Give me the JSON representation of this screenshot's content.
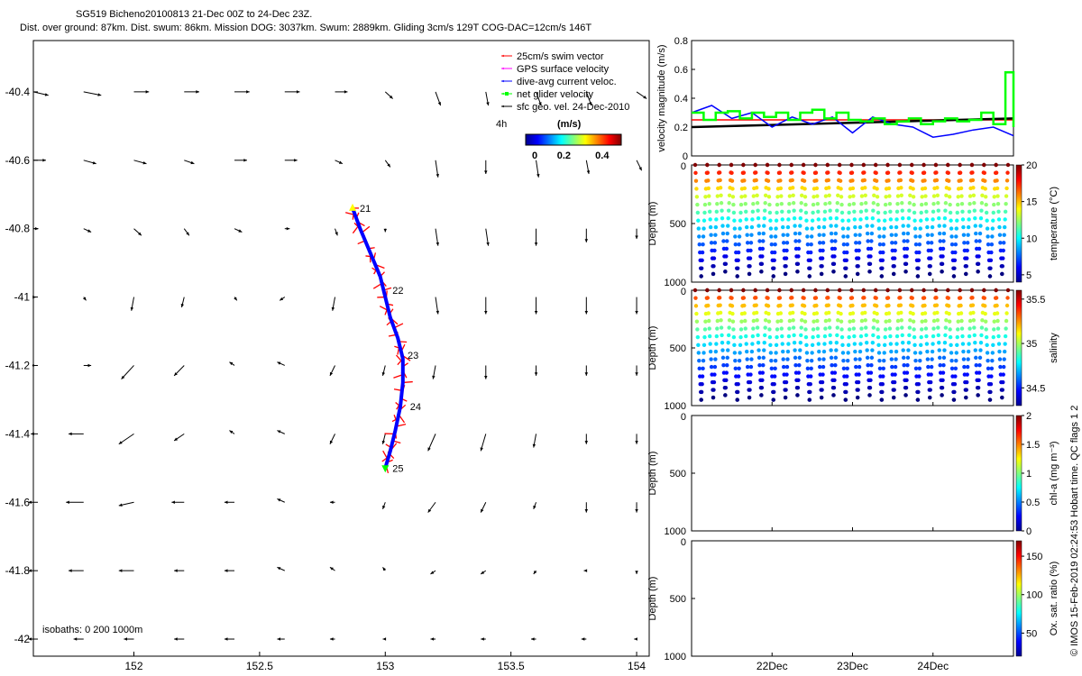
{
  "header": {
    "line1": "SG519 Bicheno20100813 21-Dec 00Z to 24-Dec 23Z.",
    "line2": "Dist. over ground: 87km. Dist. swum: 86km. Mission DOG: 3037km. Swum: 2889km. Gliding 3cm/s 129T COG-DAC=12cm/s 146T"
  },
  "credit": "© IMOS 15-Feb-2019 02:24:53 Hobart time. QC flags 1  2",
  "colors": {
    "swim": "#ff0000",
    "gps": "#ff00ff",
    "dac": "#0000ff",
    "net": "#00ff00",
    "sfc": "#000000",
    "track": "#0000ff"
  },
  "chart_data": [
    {
      "type": "scatter",
      "name": "map",
      "xlim": [
        151.6,
        154.05
      ],
      "ylim": [
        -42.05,
        -40.25
      ],
      "xticks": [
        152,
        152.5,
        153,
        153.5,
        154
      ],
      "xtick_labels": [
        "152",
        "152.5",
        "153",
        "153.5",
        "154"
      ],
      "yticks": [
        -40.4,
        -40.6,
        -40.8,
        -41,
        -41.2,
        -41.4,
        -41.6,
        -41.8,
        -42
      ],
      "ytick_labels": [
        "-40.4",
        "-40.6",
        "-40.8",
        "-41",
        "-41.2",
        "-41.4",
        "-41.6",
        "-41.8",
        "-42"
      ],
      "legend": {
        "placement": "top-right",
        "items": [
          "25cm/s swim vector",
          "GPS surface velocity",
          "dive-avg current veloc.",
          "net glider velocity",
          "sfc geo. vel. 24-Dec-2010"
        ],
        "extra_label": "4h",
        "colorbar_title": "(m/s)",
        "colorbar_ticks": [
          "0",
          "0.2",
          "0.4"
        ]
      },
      "isobaths_label": "isobaths: 0   200  1000m",
      "grid_x": [
        151.6,
        151.8,
        152.0,
        152.2,
        152.4,
        152.6,
        152.8,
        153.0,
        153.2,
        153.4,
        153.6,
        153.8,
        154.0
      ],
      "grid_y": [
        -40.4,
        -40.6,
        -40.8,
        -41.0,
        -41.2,
        -41.4,
        -41.6,
        -41.8,
        -42.0
      ],
      "sfc_vectors": [
        [
          [
            0.06,
            -0.01
          ],
          [
            0.07,
            -0.01
          ],
          [
            0.06,
            0
          ],
          [
            0.06,
            0
          ],
          [
            0.06,
            0
          ],
          [
            0.06,
            0
          ],
          [
            0.05,
            0
          ],
          [
            0.03,
            -0.02
          ],
          [
            0.02,
            -0.04
          ],
          [
            0.01,
            -0.04
          ],
          [
            0.02,
            -0.04
          ],
          [
            0.02,
            -0.04
          ],
          [
            0.04,
            -0.02
          ]
        ],
        [
          [
            0.05,
            0
          ],
          [
            0.05,
            -0.01
          ],
          [
            0.05,
            -0.01
          ],
          [
            0.04,
            -0.01
          ],
          [
            0.05,
            0
          ],
          [
            0.05,
            0
          ],
          [
            0.03,
            -0.01
          ],
          [
            0.02,
            -0.02
          ],
          [
            0.01,
            -0.05
          ],
          [
            0,
            -0.04
          ],
          [
            0.01,
            -0.05
          ],
          [
            0.01,
            -0.04
          ],
          [
            0.02,
            -0.03
          ]
        ],
        [
          [
            0.02,
            0
          ],
          [
            0.03,
            -0.01
          ],
          [
            0.03,
            -0.02
          ],
          [
            0.02,
            -0.02
          ],
          [
            0.03,
            -0.01
          ],
          [
            0.02,
            0
          ],
          [
            0.01,
            -0.02
          ],
          [
            0,
            -0.01
          ],
          [
            0.01,
            -0.05
          ],
          [
            0.01,
            -0.05
          ],
          [
            0,
            -0.05
          ],
          [
            0,
            -0.04
          ],
          [
            0,
            -0.03
          ]
        ],
        [
          [
            0.01,
            0
          ],
          [
            0.01,
            -0.01
          ],
          [
            -0.01,
            -0.04
          ],
          [
            -0.01,
            -0.03
          ],
          [
            0.01,
            -0.01
          ],
          [
            -0.02,
            -0.01
          ],
          [
            -0.01,
            -0.04
          ],
          [
            0.01,
            -0.03
          ],
          [
            0.01,
            -0.05
          ],
          [
            0,
            -0.05
          ],
          [
            0,
            -0.05
          ],
          [
            0,
            -0.05
          ],
          [
            0,
            -0.05
          ]
        ],
        [
          [
            0,
            0
          ],
          [
            0.03,
            0
          ],
          [
            -0.05,
            -0.04
          ],
          [
            -0.04,
            -0.03
          ],
          [
            -0.02,
            0.01
          ],
          [
            -0.03,
            0.01
          ],
          [
            -0.02,
            -0.03
          ],
          [
            -0.01,
            -0.03
          ],
          [
            -0.01,
            -0.04
          ],
          [
            0,
            -0.04
          ],
          [
            0,
            -0.03
          ],
          [
            0,
            -0.03
          ],
          [
            0,
            -0.03
          ]
        ],
        [
          [
            -0.01,
            0
          ],
          [
            -0.06,
            0
          ],
          [
            -0.06,
            -0.03
          ],
          [
            -0.04,
            -0.02
          ],
          [
            -0.02,
            0.01
          ],
          [
            -0.03,
            0.01
          ],
          [
            -0.02,
            -0.03
          ],
          [
            -0.01,
            -0.03
          ],
          [
            -0.03,
            -0.05
          ],
          [
            -0.02,
            -0.05
          ],
          [
            -0.01,
            -0.04
          ],
          [
            0,
            -0.03
          ],
          [
            0,
            -0.03
          ]
        ],
        [
          [
            -0.02,
            0
          ],
          [
            -0.07,
            0
          ],
          [
            -0.06,
            -0.01
          ],
          [
            -0.05,
            0
          ],
          [
            -0.04,
            0
          ],
          [
            -0.03,
            0.01
          ],
          [
            -0.02,
            0
          ],
          [
            -0.01,
            -0.02
          ],
          [
            -0.03,
            -0.03
          ],
          [
            -0.02,
            -0.03
          ],
          [
            -0.01,
            -0.02
          ],
          [
            0,
            -0.03
          ],
          [
            0,
            -0.03
          ]
        ],
        [
          [
            -0.02,
            0
          ],
          [
            -0.06,
            0
          ],
          [
            -0.06,
            0
          ],
          [
            -0.04,
            0
          ],
          [
            -0.04,
            0
          ],
          [
            -0.03,
            0.01
          ],
          [
            -0.02,
            0.01
          ],
          [
            -0.01,
            0.01
          ],
          [
            -0.02,
            -0.01
          ],
          [
            -0.02,
            -0.01
          ],
          [
            -0.01,
            -0.01
          ],
          [
            -0.01,
            0
          ],
          [
            0,
            -0.01
          ]
        ],
        [
          [
            -0.02,
            0
          ],
          [
            -0.04,
            0
          ],
          [
            -0.04,
            0
          ],
          [
            -0.04,
            0
          ],
          [
            -0.04,
            0
          ],
          [
            -0.03,
            0
          ],
          [
            -0.02,
            0
          ],
          [
            -0.01,
            0
          ],
          [
            -0.02,
            0
          ],
          [
            -0.02,
            0
          ],
          [
            -0.02,
            0
          ],
          [
            -0.02,
            0
          ],
          [
            -0.01,
            0
          ]
        ]
      ],
      "track": [
        [
          152.87,
          -40.74
        ],
        [
          152.9,
          -40.8
        ],
        [
          152.94,
          -40.87
        ],
        [
          152.98,
          -40.94
        ],
        [
          153.0,
          -41.0
        ],
        [
          153.02,
          -41.06
        ],
        [
          153.05,
          -41.12
        ],
        [
          153.07,
          -41.18
        ],
        [
          153.07,
          -41.25
        ],
        [
          153.06,
          -41.32
        ],
        [
          153.04,
          -41.39
        ],
        [
          153.02,
          -41.45
        ],
        [
          153.0,
          -41.5
        ]
      ],
      "day_labels": [
        {
          "text": "21",
          "lon": 152.87,
          "lat": -40.74
        },
        {
          "text": "22",
          "lon": 153.0,
          "lat": -40.98
        },
        {
          "text": "23",
          "lon": 153.06,
          "lat": -41.17
        },
        {
          "text": "24",
          "lon": 153.07,
          "lat": -41.32
        },
        {
          "text": "25",
          "lon": 153.0,
          "lat": -41.5
        }
      ]
    },
    {
      "type": "line",
      "name": "velocity",
      "ylabel": "velocity magnitude (m/s)",
      "ylim": [
        0,
        0.8
      ],
      "yticks": [
        "0",
        "0.2",
        "0.4",
        "0.6",
        "0.8"
      ],
      "xlim": [
        0,
        4
      ],
      "series": [
        {
          "color": "#ff0000",
          "x": [
            0,
            4
          ],
          "y": [
            0.25,
            0.25
          ]
        },
        {
          "color": "#000000",
          "x": [
            0,
            4
          ],
          "y": [
            0.2,
            0.26
          ]
        },
        {
          "color": "#0000ff",
          "x": [
            0,
            0.25,
            0.5,
            0.75,
            1.0,
            1.25,
            1.5,
            1.75,
            2.0,
            2.25,
            2.5,
            2.75,
            3.0,
            3.25,
            3.5,
            3.75,
            4.0
          ],
          "y": [
            0.3,
            0.35,
            0.26,
            0.3,
            0.2,
            0.27,
            0.22,
            0.27,
            0.16,
            0.27,
            0.22,
            0.2,
            0.13,
            0.15,
            0.18,
            0.2,
            0.14
          ]
        },
        {
          "color": "#00ff00",
          "step": true,
          "x": [
            0,
            0.15,
            0.3,
            0.45,
            0.6,
            0.75,
            0.9,
            1.05,
            1.2,
            1.35,
            1.5,
            1.65,
            1.8,
            1.95,
            2.1,
            2.25,
            2.4,
            2.55,
            2.7,
            2.85,
            3.0,
            3.15,
            3.3,
            3.45,
            3.6,
            3.75,
            3.9,
            4.0
          ],
          "y": [
            0.3,
            0.25,
            0.3,
            0.31,
            0.26,
            0.3,
            0.27,
            0.3,
            0.25,
            0.3,
            0.32,
            0.26,
            0.3,
            0.25,
            0.24,
            0.26,
            0.22,
            0.24,
            0.26,
            0.22,
            0.24,
            0.26,
            0.24,
            0.25,
            0.3,
            0.22,
            0.58,
            0.2
          ]
        }
      ]
    },
    {
      "type": "scatter",
      "name": "temperature",
      "ylabel": "Depth (m)",
      "cbar_label": "temperature (°C)",
      "yticks": [
        "0",
        "500",
        "1000"
      ],
      "cbar_ticks": [
        "5",
        "10",
        "15",
        "20"
      ],
      "cbar_range": [
        4,
        20
      ],
      "profiles": 26,
      "max_depth": 950
    },
    {
      "type": "scatter",
      "name": "salinity",
      "ylabel": "Depth (m)",
      "cbar_label": "salinity",
      "yticks": [
        "0",
        "500",
        "1000"
      ],
      "cbar_ticks": [
        "34.5",
        "35",
        "35.5"
      ],
      "cbar_range": [
        34.3,
        35.6
      ],
      "profiles": 26,
      "max_depth": 950
    },
    {
      "type": "scatter",
      "name": "chla",
      "ylabel": "Depth (m)",
      "cbar_label": "chl-a (mg m⁻³)",
      "yticks": [
        "0",
        "500",
        "1000"
      ],
      "cbar_ticks": [
        "0",
        "0.5",
        "1",
        "1.5",
        "2"
      ],
      "cbar_range": [
        0,
        2
      ]
    },
    {
      "type": "scatter",
      "name": "oxygen",
      "ylabel": "Depth (m)",
      "cbar_label": "Ox. sat. ratio (%)",
      "yticks": [
        "0",
        "500",
        "1000"
      ],
      "cbar_ticks": [
        "50",
        "100",
        "150"
      ],
      "cbar_range": [
        20,
        170
      ],
      "xtick_labels": [
        "22Dec",
        "23Dec",
        "24Dec"
      ]
    }
  ]
}
